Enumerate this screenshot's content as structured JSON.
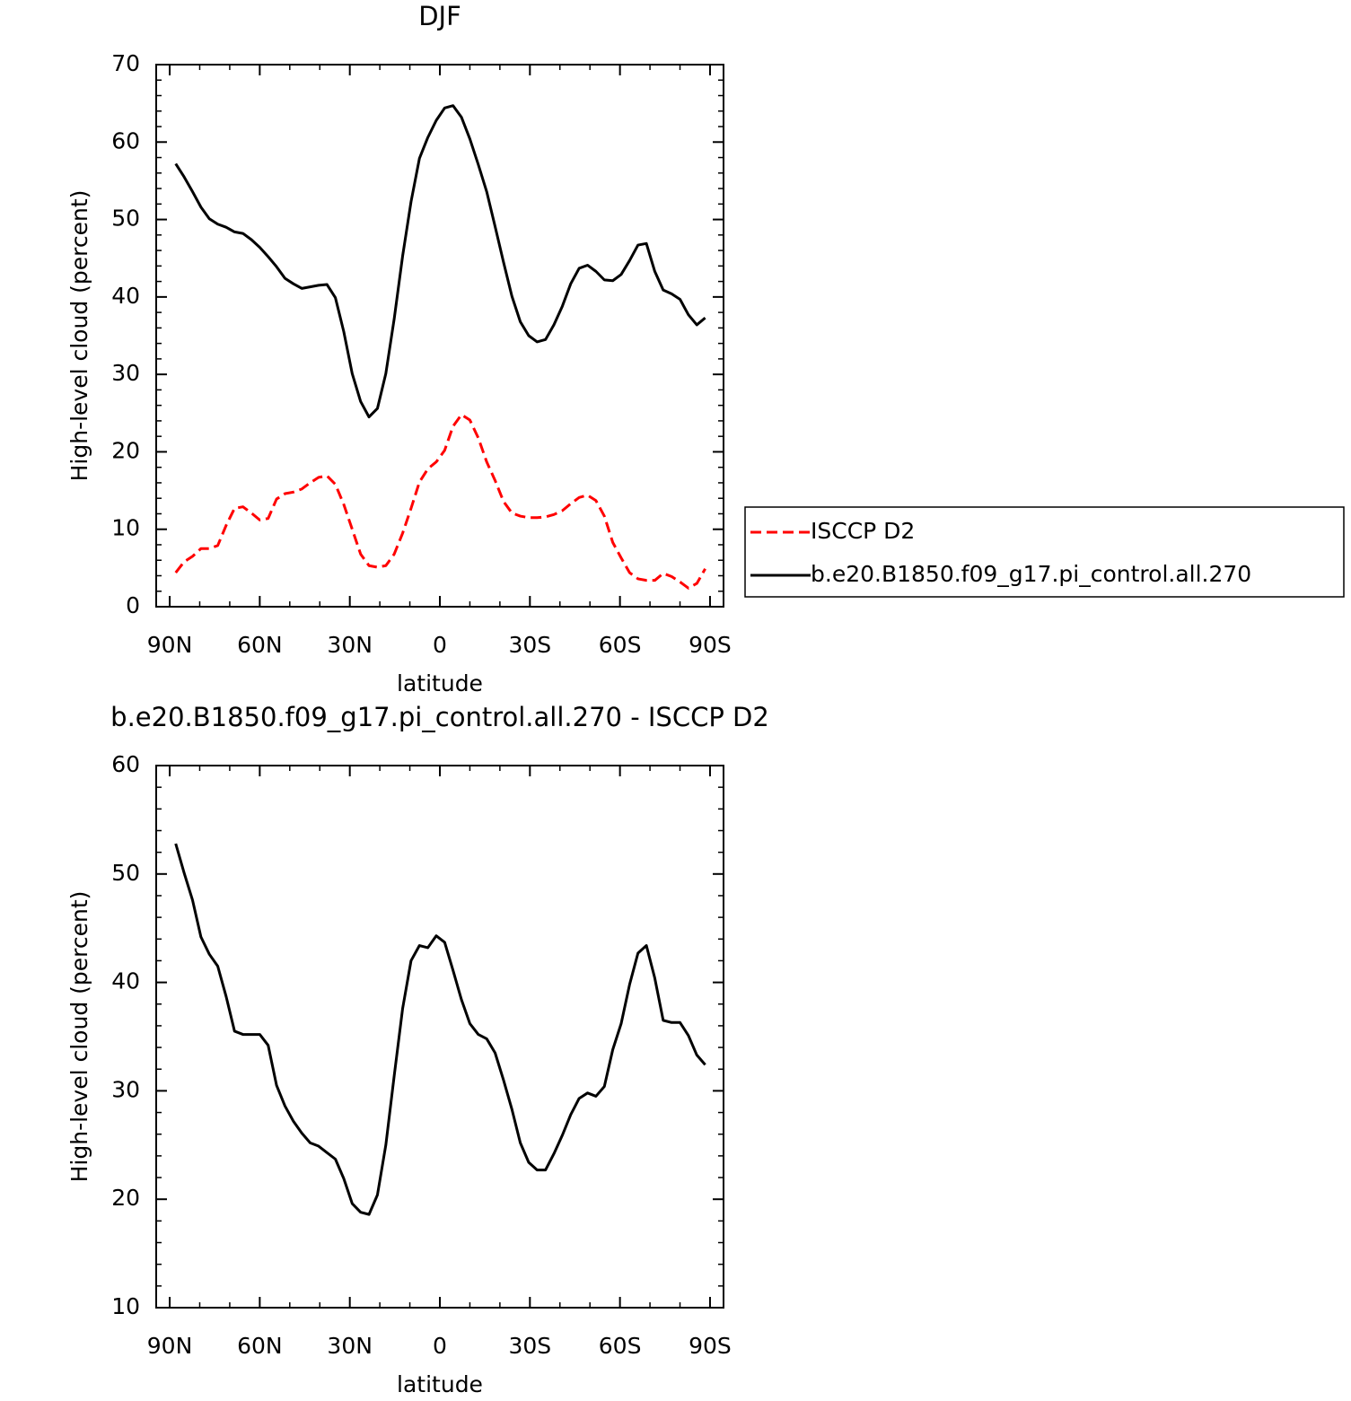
{
  "chart_data": [
    {
      "type": "line",
      "title": "DJF",
      "xlabel": "latitude",
      "ylabel": "High-level cloud (percent)",
      "x": [
        88,
        85.2,
        82.4,
        79.6,
        76.8,
        74,
        71.2,
        68.4,
        65.6,
        62.8,
        60,
        57.2,
        54.4,
        51.6,
        48.8,
        46,
        43.2,
        40.4,
        37.6,
        34.8,
        32,
        29.2,
        26.4,
        23.6,
        20.8,
        18,
        15.2,
        12.4,
        9.6,
        6.8,
        4,
        1.2,
        -1.6,
        -4.4,
        -7.2,
        -10,
        -12.8,
        -15.6,
        -18.4,
        -21.2,
        -24,
        -26.8,
        -29.6,
        -32.4,
        -35.2,
        -38,
        -40.8,
        -43.6,
        -46.4,
        -49.2,
        -52,
        -54.8,
        -57.6,
        -60.4,
        -63.2,
        -66,
        -68.8,
        -71.6,
        -74.4,
        -77.2,
        -80,
        -82.8,
        -85.6,
        -88.4
      ],
      "series": [
        {
          "name": "ISCCP D2",
          "color": "#ff0000",
          "line_style": "dashed",
          "values": [
            4.4,
            5.8,
            6.5,
            7.5,
            7.5,
            7.9,
            10.5,
            12.7,
            12.9,
            12.1,
            11.2,
            11.4,
            13.9,
            14.6,
            14.8,
            15.2,
            16.0,
            16.7,
            16.9,
            15.8,
            13.2,
            10.0,
            6.8,
            5.3,
            5.1,
            5.3,
            6.8,
            9.5,
            12.7,
            16.1,
            17.8,
            18.7,
            20.2,
            23.3,
            24.8,
            24.1,
            21.8,
            18.7,
            16.3,
            13.6,
            12.1,
            11.7,
            11.5,
            11.5,
            11.6,
            11.9,
            12.4,
            13.3,
            14.1,
            14.4,
            13.7,
            11.7,
            8.3,
            6.3,
            4.4,
            3.6,
            3.4,
            3.4,
            4.3,
            3.9,
            3.2,
            2.4,
            3.0,
            4.9
          ]
        },
        {
          "name": "b.e20.B1850.f09_g17.pi_control.all.270",
          "color": "#000000",
          "line_style": "solid",
          "values": [
            57.2,
            55.5,
            53.6,
            51.6,
            50.1,
            49.4,
            49.0,
            48.4,
            48.2,
            47.4,
            46.4,
            45.2,
            43.9,
            42.4,
            41.7,
            41.1,
            41.3,
            41.5,
            41.6,
            39.9,
            35.5,
            30.1,
            26.5,
            24.5,
            25.6,
            30.1,
            37.2,
            45.3,
            52.3,
            57.9,
            60.6,
            62.8,
            64.4,
            64.7,
            63.2,
            60.4,
            57.1,
            53.6,
            49.1,
            44.5,
            40.1,
            36.8,
            35.0,
            34.2,
            34.5,
            36.4,
            38.8,
            41.7,
            43.7,
            44.1,
            43.3,
            42.2,
            42.1,
            42.9,
            44.7,
            46.7,
            46.9,
            43.3,
            40.9,
            40.4,
            39.7,
            37.7,
            36.4,
            37.3
          ]
        }
      ],
      "xlim": [
        94.5,
        -94.5
      ],
      "xticks": [
        {
          "value": 90,
          "label": "90N"
        },
        {
          "value": 60,
          "label": "60N"
        },
        {
          "value": 30,
          "label": "30N"
        },
        0,
        {
          "value": -30,
          "label": "30S"
        },
        {
          "value": -60,
          "label": "60S"
        },
        {
          "value": -90,
          "label": "90S"
        }
      ],
      "xminorticks": [
        80,
        70,
        50,
        40,
        20,
        10,
        -10,
        -20,
        -40,
        -50,
        -70,
        -80
      ],
      "ylim": [
        0,
        70
      ],
      "yticks": [
        0,
        10,
        20,
        30,
        40,
        50,
        60,
        70
      ],
      "yminorticks": [
        2,
        4,
        6,
        8,
        12,
        14,
        16,
        18,
        22,
        24,
        26,
        28,
        32,
        34,
        36,
        38,
        42,
        44,
        46,
        48,
        52,
        54,
        56,
        58,
        62,
        64,
        66,
        68
      ],
      "legend": "right"
    },
    {
      "type": "line",
      "title": "b.e20.B1850.f09_g17.pi_control.all.270 - ISCCP D2",
      "xlabel": "latitude",
      "ylabel": "High-level cloud (percent)",
      "x": [
        88,
        85.2,
        82.4,
        79.6,
        76.8,
        74,
        71.2,
        68.4,
        65.6,
        62.8,
        60,
        57.2,
        54.4,
        51.6,
        48.8,
        46,
        43.2,
        40.4,
        37.6,
        34.8,
        32,
        29.2,
        26.4,
        23.6,
        20.8,
        18,
        15.2,
        12.4,
        9.6,
        6.8,
        4,
        1.2,
        -1.6,
        -4.4,
        -7.2,
        -10,
        -12.8,
        -15.6,
        -18.4,
        -21.2,
        -24,
        -26.8,
        -29.6,
        -32.4,
        -35.2,
        -38,
        -40.8,
        -43.6,
        -46.4,
        -49.2,
        -52,
        -54.8,
        -57.6,
        -60.4,
        -63.2,
        -66,
        -68.8,
        -71.6,
        -74.4,
        -77.2,
        -80,
        -82.8,
        -85.6,
        -88.4
      ],
      "series": [
        {
          "color": "#000000",
          "line_style": "solid",
          "values": [
            52.8,
            50.1,
            47.6,
            44.2,
            42.6,
            41.5,
            38.7,
            35.5,
            35.2,
            35.2,
            35.2,
            34.2,
            30.5,
            28.6,
            27.2,
            26.1,
            25.2,
            24.9,
            24.3,
            23.7,
            21.9,
            19.6,
            18.8,
            18.6,
            20.4,
            25.0,
            31.4,
            37.6,
            42.0,
            43.4,
            43.2,
            44.3,
            43.7,
            41.1,
            38.4,
            36.2,
            35.2,
            34.8,
            33.5,
            31.0,
            28.3,
            25.2,
            23.4,
            22.7,
            22.7,
            24.2,
            25.9,
            27.8,
            29.3,
            29.8,
            29.5,
            30.4,
            33.8,
            36.2,
            39.8,
            42.7,
            43.4,
            40.4,
            36.5,
            36.3,
            36.3,
            35.1,
            33.3,
            32.4
          ]
        }
      ],
      "xlim": [
        94.5,
        -94.5
      ],
      "xticks": [
        {
          "value": 90,
          "label": "90N"
        },
        {
          "value": 60,
          "label": "60N"
        },
        {
          "value": 30,
          "label": "30N"
        },
        0,
        {
          "value": -30,
          "label": "30S"
        },
        {
          "value": -60,
          "label": "60S"
        },
        {
          "value": -90,
          "label": "90S"
        }
      ],
      "xminorticks": [
        80,
        70,
        50,
        40,
        20,
        10,
        -10,
        -20,
        -40,
        -50,
        -70,
        -80
      ],
      "ylim": [
        10,
        60
      ],
      "yticks": [
        10,
        20,
        30,
        40,
        50,
        60
      ],
      "yminorticks": [
        12,
        14,
        16,
        18,
        22,
        24,
        26,
        28,
        32,
        34,
        36,
        38,
        42,
        44,
        46,
        48,
        52,
        54,
        56,
        58
      ]
    }
  ]
}
